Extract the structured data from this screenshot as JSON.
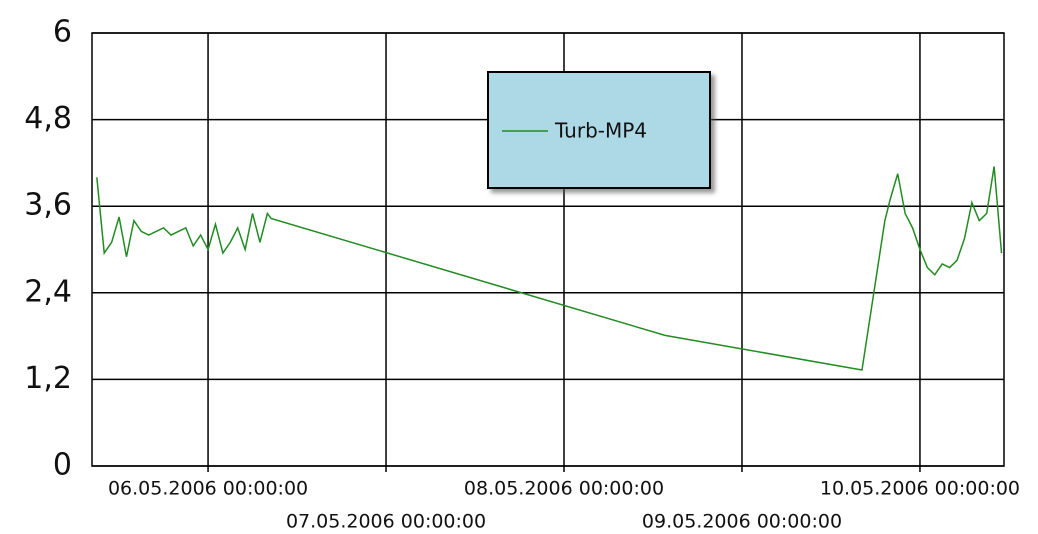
{
  "chart_data": {
    "type": "line",
    "x": [
      "05.05.2006 09:00:00",
      "05.05.2006 10:00:00",
      "05.05.2006 11:00:00",
      "05.05.2006 12:00:00",
      "05.05.2006 13:00:00",
      "05.05.2006 14:00:00",
      "05.05.2006 15:00:00",
      "05.05.2006 16:00:00",
      "05.05.2006 17:00:00",
      "05.05.2006 18:00:00",
      "05.05.2006 19:00:00",
      "05.05.2006 20:00:00",
      "05.05.2006 21:00:00",
      "05.05.2006 22:00:00",
      "05.05.2006 23:00:00",
      "06.05.2006 00:00:00",
      "06.05.2006 01:00:00",
      "06.05.2006 02:00:00",
      "06.05.2006 03:00:00",
      "06.05.2006 04:00:00",
      "06.05.2006 05:00:00",
      "06.05.2006 06:00:00",
      "06.05.2006 07:00:00",
      "06.05.2006 08:00:00",
      "06.05.2006 08:30:00",
      "08.05.2006 13:37:00",
      "09.05.2006 16:11:00",
      "09.05.2006 19:16:00",
      "09.05.2006 20:00:00",
      "09.05.2006 21:00:00",
      "09.05.2006 22:00:00",
      "09.05.2006 23:00:00",
      "10.05.2006 00:00:00",
      "10.05.2006 01:00:00",
      "10.05.2006 02:00:00",
      "10.05.2006 03:00:00",
      "10.05.2006 04:00:00",
      "10.05.2006 05:00:00",
      "10.05.2006 06:00:00",
      "10.05.2006 07:00:00",
      "10.05.2006 08:00:00",
      "10.05.2006 09:00:00",
      "10.05.2006 10:00:00",
      "10.05.2006 11:00:00"
    ],
    "series": [
      {
        "name": "Turb-MP4",
        "color": "#228b22",
        "values": [
          4.0,
          2.95,
          3.1,
          3.45,
          2.9,
          3.4,
          3.25,
          3.2,
          3.25,
          3.3,
          3.2,
          3.25,
          3.3,
          3.05,
          3.2,
          3.0,
          3.35,
          2.95,
          3.1,
          3.3,
          3.0,
          3.5,
          3.1,
          3.5,
          3.43,
          1.81,
          1.33,
          3.4,
          3.7,
          4.05,
          3.5,
          3.3,
          3.0,
          2.75,
          2.65,
          2.8,
          2.75,
          2.85,
          3.15,
          3.65,
          3.4,
          3.5,
          4.15,
          2.95
        ]
      }
    ],
    "xlim": [
      "05.05.2006 08:21:00",
      "10.05.2006 11:20:00"
    ],
    "xticks": [
      "06.05.2006 00:00:00",
      "07.05.2006 00:00:00",
      "08.05.2006 00:00:00",
      "09.05.2006 00:00:00",
      "10.05.2006 00:00:00"
    ],
    "ylim": [
      0,
      6
    ],
    "yticks": [
      0,
      {
        "value": 1.2,
        "label": "1,2"
      },
      {
        "value": 2.4,
        "label": "2,4"
      },
      {
        "value": 3.6,
        "label": "3,6"
      },
      {
        "value": 4.8,
        "label": "4,8"
      },
      6
    ],
    "grid": true
  }
}
